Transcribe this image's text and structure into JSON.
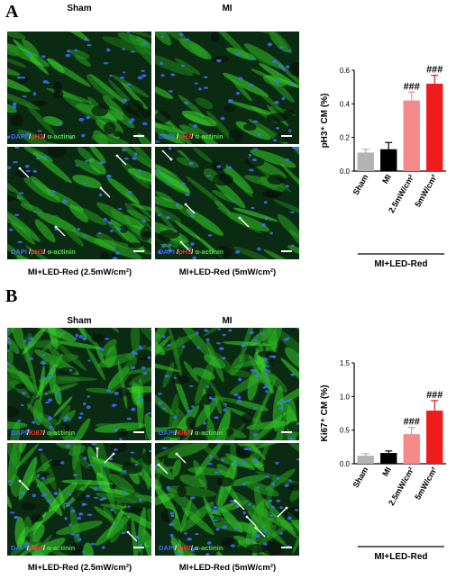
{
  "panels": [
    {
      "letter": "A",
      "col_labels": [
        "Sham",
        "MI"
      ],
      "row_labels": [
        "MI+LED-Red (2.5mW/cm²)",
        "MI+LED-Red (5mW/cm²)"
      ],
      "stain": {
        "a": "DAPI",
        "b": "pH3",
        "c": "α-actinin"
      },
      "chart_data": {
        "type": "bar",
        "ylabel": "pH3⁺ CM (%)",
        "categories": [
          "Sham",
          "MI",
          "2.5mW/cm²",
          "5mW/cm²"
        ],
        "values": [
          0.11,
          0.13,
          0.42,
          0.52
        ],
        "errors": [
          0.02,
          0.04,
          0.05,
          0.05
        ],
        "ylim": [
          0,
          0.6
        ],
        "yticks": [
          "0.0",
          "0.2",
          "0.4",
          "0.6"
        ],
        "significance": [
          "",
          "",
          "###",
          "###"
        ],
        "group_label": "MI+LED-Red",
        "colors": [
          "#b3b3b3",
          "#000000",
          "#f48a8a",
          "#ee1c1c"
        ]
      }
    },
    {
      "letter": "B",
      "col_labels": [
        "Sham",
        "MI"
      ],
      "row_labels": [
        "MI+LED-Red (2.5mW/cm²)",
        "MI+LED-Red (5mW/cm²)"
      ],
      "stain": {
        "a": "DAPI",
        "b": "Ki67",
        "c": "α-actinin"
      },
      "chart_data": {
        "type": "bar",
        "ylabel": "Ki67⁺ CM (%)",
        "categories": [
          "Sham",
          "MI",
          "2.5mW/cm²",
          "5mW/cm²"
        ],
        "values": [
          0.12,
          0.16,
          0.44,
          0.79
        ],
        "errors": [
          0.03,
          0.03,
          0.1,
          0.15
        ],
        "ylim": [
          0,
          1.5
        ],
        "yticks": [
          "0.0",
          "0.5",
          "1.0",
          "1.5"
        ],
        "significance": [
          "",
          "",
          "###",
          "###"
        ],
        "group_label": "MI+LED-Red",
        "colors": [
          "#b3b3b3",
          "#000000",
          "#f48a8a",
          "#ee1c1c"
        ]
      }
    }
  ]
}
